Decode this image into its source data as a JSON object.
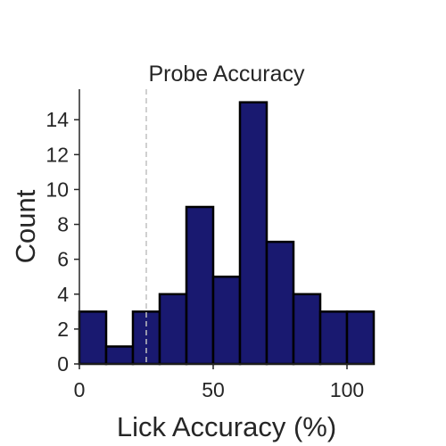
{
  "chart_data": {
    "type": "bar",
    "title": "Probe Accuracy",
    "xlabel": "Lick Accuracy (%)",
    "ylabel": "Count",
    "bin_edges": [
      0,
      10,
      20,
      30,
      40,
      50,
      60,
      70,
      80,
      90,
      100,
      110
    ],
    "values": [
      3,
      1,
      3,
      4,
      9,
      5,
      15,
      7,
      4,
      3,
      3
    ],
    "xlim": [
      0,
      110
    ],
    "ylim": [
      0,
      15.75
    ],
    "x_ticks": [
      0,
      50,
      100
    ],
    "x_tick_labels": [
      "0",
      "50",
      "100"
    ],
    "y_ticks": [
      0,
      2,
      4,
      6,
      8,
      10,
      12,
      14
    ],
    "y_tick_labels": [
      "0",
      "2",
      "4",
      "6",
      "8",
      "10",
      "12",
      "14"
    ],
    "reference_line_x": 25,
    "grid": false,
    "legend": "none",
    "colors": {
      "bar_fill": "#191970",
      "bar_edge": "#000000",
      "reference_line": "#c0c0c0",
      "axis": "#262626"
    }
  }
}
